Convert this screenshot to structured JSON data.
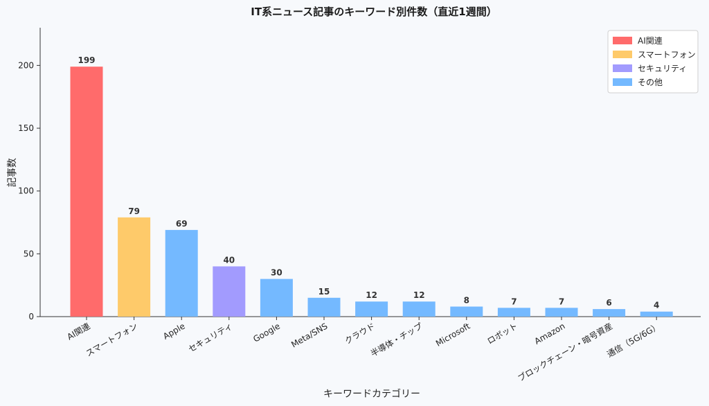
{
  "chart_data": {
    "type": "bar",
    "title": "IT系ニュース記事のキーワード別件数（直近1週間）",
    "xlabel": "キーワードカテゴリー",
    "ylabel": "記事数",
    "ylim": [
      0,
      230
    ],
    "yticks": [
      0,
      50,
      100,
      150,
      200
    ],
    "categories": [
      "AI関連",
      "スマートフォン",
      "Apple",
      "セキュリティ",
      "Google",
      "Meta/SNS",
      "クラウド",
      "半導体・チップ",
      "Microsoft",
      "ロボット",
      "Amazon",
      "ブロックチェーン・暗号資産",
      "通信（5G/6G）"
    ],
    "values": [
      199,
      79,
      69,
      40,
      30,
      15,
      12,
      12,
      8,
      7,
      7,
      6,
      4
    ],
    "bar_groups": [
      "AI関連",
      "スマートフォン",
      "その他",
      "セキュリティ",
      "その他",
      "その他",
      "その他",
      "その他",
      "その他",
      "その他",
      "その他",
      "その他",
      "その他"
    ],
    "legend": {
      "position": "top-right",
      "entries": [
        {
          "label": "AI関連",
          "color": "#ff6b6b"
        },
        {
          "label": "スマートフォン",
          "color": "#feca6a"
        },
        {
          "label": "セキュリティ",
          "color": "#a29bfe"
        },
        {
          "label": "その他",
          "color": "#74b9ff"
        }
      ]
    },
    "grid": false
  }
}
